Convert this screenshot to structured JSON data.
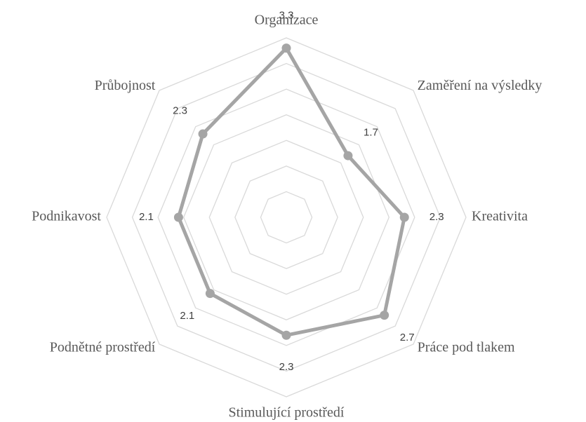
{
  "chart_data": {
    "type": "radar",
    "categories": [
      "Organizace",
      "Zaměření na výsledky",
      "Kreativita",
      "Práce pod tlakem",
      "Stimulující prostředí",
      "Podnětné prostředí",
      "Podnikavost",
      "Průbojnost"
    ],
    "values": [
      3.3,
      1.7,
      2.3,
      2.7,
      2.3,
      2.1,
      2.1,
      2.3
    ],
    "color": "#a5a5a5",
    "ylim": [
      0,
      3.5
    ],
    "yticks": [
      0,
      0.5,
      1,
      1.5,
      2,
      2.5,
      3,
      3.5
    ],
    "grid": true
  }
}
